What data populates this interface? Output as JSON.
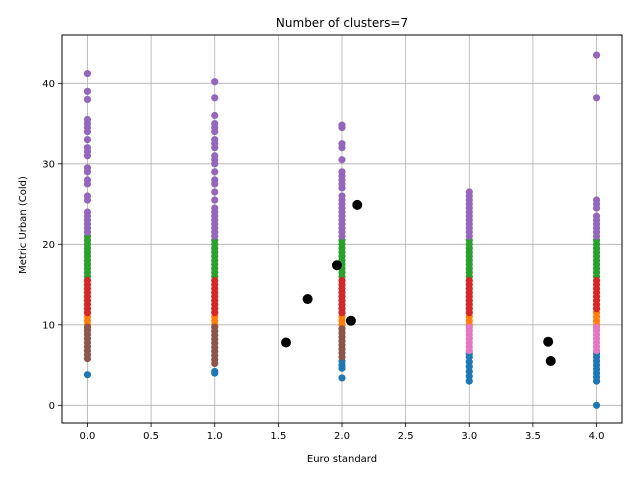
{
  "chart_data": {
    "type": "scatter",
    "title": "Number of clusters=7",
    "xlabel": "Euro standard",
    "ylabel": "Metric Urban (Cold)",
    "xlim": [
      -0.2,
      4.2
    ],
    "ylim": [
      -2.2,
      46
    ],
    "xticks": [
      0.0,
      0.5,
      1.0,
      1.5,
      2.0,
      2.5,
      3.0,
      3.5,
      4.0
    ],
    "xtick_labels": [
      "0.0",
      "0.5",
      "1.0",
      "1.5",
      "2.0",
      "2.5",
      "3.0",
      "3.5",
      "4.0"
    ],
    "yticks": [
      0,
      10,
      20,
      30,
      40
    ],
    "ytick_labels": [
      "0",
      "10",
      "20",
      "30",
      "40"
    ],
    "grid": true,
    "series": [
      {
        "color": "#1f77b4",
        "points": [
          [
            0,
            3.8
          ],
          [
            1,
            4.0
          ],
          [
            1,
            4.2
          ],
          [
            2,
            3.4
          ],
          [
            2,
            4.6
          ],
          [
            2,
            5.0
          ],
          [
            2,
            5.5
          ],
          [
            3,
            3.0
          ],
          [
            3,
            3.6
          ],
          [
            3,
            4.2
          ],
          [
            3,
            4.8
          ],
          [
            3,
            5.4
          ],
          [
            3,
            6.0
          ],
          [
            3,
            6.4
          ],
          [
            4,
            0.0
          ],
          [
            4,
            3.0
          ],
          [
            4,
            3.5
          ],
          [
            4,
            4.0
          ],
          [
            4,
            4.5
          ],
          [
            4,
            5.0
          ],
          [
            4,
            5.5
          ],
          [
            4,
            6.0
          ],
          [
            4,
            6.4
          ]
        ]
      },
      {
        "color": "#ff7f0e",
        "points": [
          [
            0,
            10.0
          ],
          [
            0,
            10.5
          ],
          [
            0,
            11.0
          ],
          [
            1,
            10.0
          ],
          [
            1,
            10.5
          ],
          [
            1,
            11.0
          ],
          [
            2,
            10.0
          ],
          [
            2,
            10.5
          ],
          [
            2,
            11.0
          ],
          [
            3,
            10.0
          ],
          [
            3,
            10.5
          ],
          [
            3,
            11.0
          ],
          [
            4,
            10.0
          ],
          [
            4,
            10.5
          ],
          [
            4,
            11.0
          ],
          [
            4,
            11.5
          ]
        ]
      },
      {
        "color": "#2ca02c",
        "points": [
          [
            0,
            16.0
          ],
          [
            0,
            16.5
          ],
          [
            0,
            17.0
          ],
          [
            0,
            17.5
          ],
          [
            0,
            18.0
          ],
          [
            0,
            18.5
          ],
          [
            0,
            19.0
          ],
          [
            0,
            19.5
          ],
          [
            0,
            20.0
          ],
          [
            0,
            20.5
          ],
          [
            0,
            21.0
          ],
          [
            1,
            16.0
          ],
          [
            1,
            16.5
          ],
          [
            1,
            17.0
          ],
          [
            1,
            17.5
          ],
          [
            1,
            18.0
          ],
          [
            1,
            18.5
          ],
          [
            1,
            19.0
          ],
          [
            1,
            19.5
          ],
          [
            1,
            20.0
          ],
          [
            1,
            20.5
          ],
          [
            2,
            16.0
          ],
          [
            2,
            16.5
          ],
          [
            2,
            17.0
          ],
          [
            2,
            17.5
          ],
          [
            2,
            18.0
          ],
          [
            2,
            18.5
          ],
          [
            2,
            19.0
          ],
          [
            2,
            19.5
          ],
          [
            2,
            20.0
          ],
          [
            2,
            20.5
          ],
          [
            3,
            16.0
          ],
          [
            3,
            16.5
          ],
          [
            3,
            17.0
          ],
          [
            3,
            17.5
          ],
          [
            3,
            18.0
          ],
          [
            3,
            18.5
          ],
          [
            3,
            19.0
          ],
          [
            3,
            19.5
          ],
          [
            3,
            20.0
          ],
          [
            3,
            20.5
          ],
          [
            4,
            16.0
          ],
          [
            4,
            16.5
          ],
          [
            4,
            17.0
          ],
          [
            4,
            17.5
          ],
          [
            4,
            18.0
          ],
          [
            4,
            18.5
          ],
          [
            4,
            19.0
          ],
          [
            4,
            19.5
          ],
          [
            4,
            20.0
          ],
          [
            4,
            20.5
          ]
        ]
      },
      {
        "color": "#d62728",
        "points": [
          [
            0,
            11.5
          ],
          [
            0,
            12.0
          ],
          [
            0,
            12.5
          ],
          [
            0,
            13.0
          ],
          [
            0,
            13.5
          ],
          [
            0,
            14.0
          ],
          [
            0,
            14.5
          ],
          [
            0,
            15.0
          ],
          [
            0,
            15.5
          ],
          [
            1,
            11.5
          ],
          [
            1,
            12.0
          ],
          [
            1,
            12.5
          ],
          [
            1,
            13.0
          ],
          [
            1,
            13.5
          ],
          [
            1,
            14.0
          ],
          [
            1,
            14.5
          ],
          [
            1,
            15.0
          ],
          [
            1,
            15.5
          ],
          [
            2,
            11.5
          ],
          [
            2,
            12.0
          ],
          [
            2,
            12.5
          ],
          [
            2,
            13.0
          ],
          [
            2,
            13.5
          ],
          [
            2,
            14.0
          ],
          [
            2,
            14.5
          ],
          [
            2,
            15.0
          ],
          [
            2,
            15.5
          ],
          [
            3,
            11.5
          ],
          [
            3,
            12.0
          ],
          [
            3,
            12.5
          ],
          [
            3,
            13.0
          ],
          [
            3,
            13.5
          ],
          [
            3,
            14.0
          ],
          [
            3,
            14.5
          ],
          [
            3,
            15.0
          ],
          [
            3,
            15.5
          ],
          [
            4,
            12.0
          ],
          [
            4,
            12.5
          ],
          [
            4,
            13.0
          ],
          [
            4,
            13.5
          ],
          [
            4,
            14.0
          ],
          [
            4,
            14.5
          ],
          [
            4,
            15.0
          ],
          [
            4,
            15.5
          ]
        ]
      },
      {
        "color": "#9467bd",
        "points": [
          [
            0,
            21.5
          ],
          [
            0,
            22.0
          ],
          [
            0,
            22.5
          ],
          [
            0,
            23.0
          ],
          [
            0,
            23.5
          ],
          [
            0,
            24.0
          ],
          [
            0,
            25.5
          ],
          [
            0,
            26.0
          ],
          [
            0,
            27.5
          ],
          [
            0,
            28.0
          ],
          [
            0,
            29.0
          ],
          [
            0,
            29.5
          ],
          [
            0,
            31.0
          ],
          [
            0,
            31.5
          ],
          [
            0,
            32.0
          ],
          [
            0,
            33.0
          ],
          [
            0,
            34.0
          ],
          [
            0,
            34.5
          ],
          [
            0,
            35.0
          ],
          [
            0,
            35.5
          ],
          [
            0,
            38.0
          ],
          [
            0,
            39.0
          ],
          [
            0,
            41.2
          ],
          [
            1,
            21.0
          ],
          [
            1,
            21.5
          ],
          [
            1,
            22.0
          ],
          [
            1,
            22.5
          ],
          [
            1,
            23.0
          ],
          [
            1,
            23.5
          ],
          [
            1,
            24.0
          ],
          [
            1,
            24.5
          ],
          [
            1,
            25.5
          ],
          [
            1,
            26.5
          ],
          [
            1,
            27.5
          ],
          [
            1,
            28.0
          ],
          [
            1,
            29.0
          ],
          [
            1,
            30.0
          ],
          [
            1,
            30.5
          ],
          [
            1,
            31.0
          ],
          [
            1,
            32.0
          ],
          [
            1,
            32.5
          ],
          [
            1,
            33.0
          ],
          [
            1,
            34.0
          ],
          [
            1,
            34.5
          ],
          [
            1,
            35.0
          ],
          [
            1,
            36.0
          ],
          [
            1,
            38.2
          ],
          [
            1,
            40.2
          ],
          [
            2,
            21.0
          ],
          [
            2,
            21.5
          ],
          [
            2,
            22.0
          ],
          [
            2,
            22.5
          ],
          [
            2,
            23.0
          ],
          [
            2,
            23.5
          ],
          [
            2,
            24.0
          ],
          [
            2,
            24.5
          ],
          [
            2,
            25.0
          ],
          [
            2,
            25.5
          ],
          [
            2,
            26.0
          ],
          [
            2,
            27.0
          ],
          [
            2,
            27.5
          ],
          [
            2,
            28.0
          ],
          [
            2,
            28.5
          ],
          [
            2,
            29.0
          ],
          [
            2,
            30.5
          ],
          [
            2,
            32.0
          ],
          [
            2,
            32.5
          ],
          [
            2,
            34.5
          ],
          [
            2,
            34.8
          ],
          [
            3,
            21.0
          ],
          [
            3,
            21.5
          ],
          [
            3,
            22.0
          ],
          [
            3,
            22.5
          ],
          [
            3,
            23.0
          ],
          [
            3,
            23.5
          ],
          [
            3,
            24.0
          ],
          [
            3,
            24.5
          ],
          [
            3,
            25.0
          ],
          [
            3,
            25.5
          ],
          [
            3,
            26.0
          ],
          [
            3,
            26.5
          ],
          [
            4,
            21.0
          ],
          [
            4,
            21.5
          ],
          [
            4,
            22.0
          ],
          [
            4,
            22.5
          ],
          [
            4,
            23.0
          ],
          [
            4,
            23.5
          ],
          [
            4,
            24.5
          ],
          [
            4,
            25.0
          ],
          [
            4,
            25.5
          ],
          [
            4,
            38.2
          ],
          [
            4,
            43.5
          ]
        ]
      },
      {
        "color": "#8c564b",
        "points": [
          [
            0,
            5.8
          ],
          [
            0,
            6.3
          ],
          [
            0,
            6.8
          ],
          [
            0,
            7.3
          ],
          [
            0,
            7.8
          ],
          [
            0,
            8.3
          ],
          [
            0,
            8.8
          ],
          [
            0,
            9.3
          ],
          [
            0,
            9.7
          ],
          [
            1,
            5.2
          ],
          [
            1,
            5.7
          ],
          [
            1,
            6.2
          ],
          [
            1,
            6.7
          ],
          [
            1,
            7.2
          ],
          [
            1,
            7.7
          ],
          [
            1,
            8.2
          ],
          [
            1,
            8.7
          ],
          [
            1,
            9.2
          ],
          [
            1,
            9.7
          ],
          [
            2,
            6.0
          ],
          [
            2,
            6.5
          ],
          [
            2,
            7.0
          ],
          [
            2,
            7.5
          ],
          [
            2,
            8.0
          ],
          [
            2,
            8.5
          ],
          [
            2,
            9.0
          ],
          [
            2,
            9.5
          ]
        ]
      },
      {
        "color": "#e377c2",
        "points": [
          [
            3,
            6.8
          ],
          [
            3,
            7.3
          ],
          [
            3,
            7.8
          ],
          [
            3,
            8.3
          ],
          [
            3,
            8.8
          ],
          [
            3,
            9.3
          ],
          [
            3,
            9.7
          ],
          [
            4,
            6.8
          ],
          [
            4,
            7.3
          ],
          [
            4,
            7.8
          ],
          [
            4,
            8.3
          ],
          [
            4,
            8.8
          ],
          [
            4,
            9.3
          ],
          [
            4,
            9.7
          ]
        ]
      }
    ],
    "centroids": {
      "color": "#000000",
      "points": [
        [
          1.56,
          7.8
        ],
        [
          1.73,
          13.2
        ],
        [
          1.96,
          17.4
        ],
        [
          2.07,
          10.5
        ],
        [
          2.12,
          24.9
        ],
        [
          3.62,
          7.9
        ],
        [
          3.64,
          5.5
        ]
      ]
    }
  }
}
